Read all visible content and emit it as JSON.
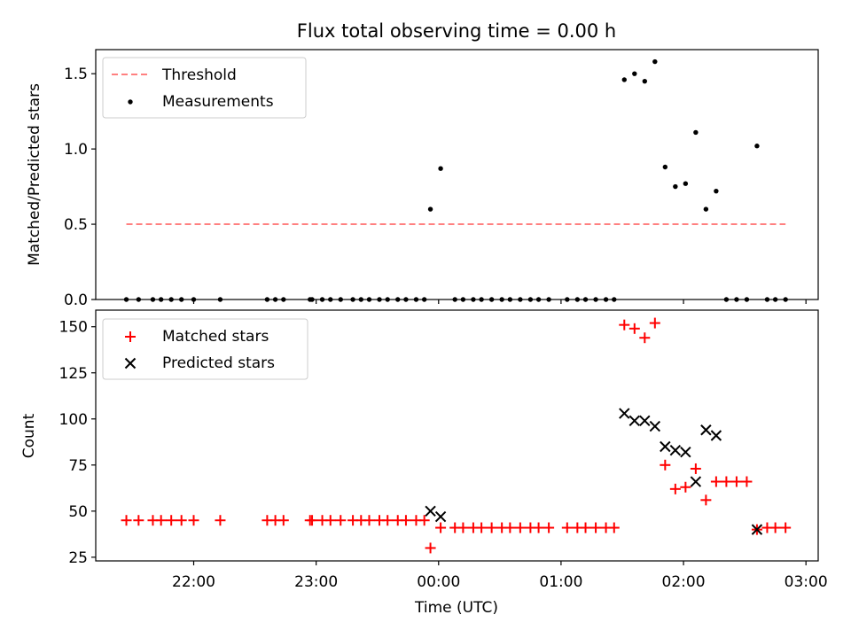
{
  "title": "Flux total observing time = 0.00 h",
  "colors": {
    "threshold": "#ff8080",
    "measure": "#000000",
    "matched": "#ff0000",
    "predicted": "#000000"
  },
  "chart_data": [
    {
      "type": "scatter",
      "title": "Flux total observing time = 0.00 h",
      "ylabel": "Matched/Predicted stars",
      "xlabel": "",
      "xlim": [
        "21:12",
        "03:06"
      ],
      "ylim": [
        0,
        1.66
      ],
      "yticks": [
        0,
        0.5,
        1.0,
        1.5
      ],
      "ytick_labels": [
        "0.0",
        "0.5",
        "1.0",
        "1.5"
      ],
      "legend": {
        "placement": "top-left",
        "entries": [
          "Threshold",
          "Measurements"
        ]
      },
      "threshold": {
        "name": "Threshold",
        "y": 0.5,
        "x_range": [
          "21:27",
          "02:50"
        ]
      },
      "series": [
        {
          "name": "Measurements",
          "points": [
            [
              "21:27",
              0
            ],
            [
              "21:33",
              0
            ],
            [
              "21:40",
              0
            ],
            [
              "21:44",
              0
            ],
            [
              "21:49",
              0
            ],
            [
              "21:54",
              0
            ],
            [
              "22:00",
              0
            ],
            [
              "22:13",
              0
            ],
            [
              "22:36",
              0
            ],
            [
              "22:40",
              0
            ],
            [
              "22:44",
              0
            ],
            [
              "22:57",
              0
            ],
            [
              "22:58",
              0
            ],
            [
              "23:03",
              0
            ],
            [
              "23:07",
              0
            ],
            [
              "23:12",
              0
            ],
            [
              "23:18",
              0
            ],
            [
              "23:22",
              0
            ],
            [
              "23:26",
              0
            ],
            [
              "23:31",
              0
            ],
            [
              "23:35",
              0
            ],
            [
              "23:40",
              0
            ],
            [
              "23:44",
              0
            ],
            [
              "23:49",
              0
            ],
            [
              "23:53",
              0
            ],
            [
              "23:56",
              0.6
            ],
            [
              "00:01",
              0.87
            ],
            [
              "00:08",
              0
            ],
            [
              "00:12",
              0
            ],
            [
              "00:17",
              0
            ],
            [
              "00:21",
              0
            ],
            [
              "00:26",
              0
            ],
            [
              "00:31",
              0
            ],
            [
              "00:35",
              0
            ],
            [
              "00:40",
              0
            ],
            [
              "00:45",
              0
            ],
            [
              "00:49",
              0
            ],
            [
              "00:54",
              0
            ],
            [
              "01:03",
              0
            ],
            [
              "01:08",
              0
            ],
            [
              "01:12",
              0
            ],
            [
              "01:17",
              0
            ],
            [
              "01:22",
              0
            ],
            [
              "01:26",
              0
            ],
            [
              "01:31",
              1.46
            ],
            [
              "01:36",
              1.5
            ],
            [
              "01:41",
              1.45
            ],
            [
              "01:46",
              1.58
            ],
            [
              "01:51",
              0.88
            ],
            [
              "01:56",
              0.75
            ],
            [
              "02:01",
              0.77
            ],
            [
              "02:06",
              1.11
            ],
            [
              "02:11",
              0.6
            ],
            [
              "02:16",
              0.72
            ],
            [
              "02:21",
              0
            ],
            [
              "02:26",
              0
            ],
            [
              "02:31",
              0
            ],
            [
              "02:36",
              1.02
            ],
            [
              "02:41",
              0
            ],
            [
              "02:45",
              0
            ],
            [
              "02:50",
              0
            ]
          ]
        }
      ]
    },
    {
      "type": "scatter",
      "title": "",
      "xlabel": "Time (UTC)",
      "ylabel": "Count",
      "xlim": [
        "21:12",
        "03:06"
      ],
      "ylim": [
        23,
        159
      ],
      "yticks": [
        25,
        50,
        75,
        100,
        125,
        150
      ],
      "xticks": [
        "22:00",
        "23:00",
        "00:00",
        "01:00",
        "02:00",
        "03:00"
      ],
      "legend": {
        "placement": "top-left",
        "entries": [
          "Matched stars",
          "Predicted stars"
        ]
      },
      "series": [
        {
          "name": "Matched stars",
          "marker": "plus",
          "points": [
            [
              "21:27",
              45
            ],
            [
              "21:33",
              45
            ],
            [
              "21:40",
              45
            ],
            [
              "21:44",
              45
            ],
            [
              "21:49",
              45
            ],
            [
              "21:54",
              45
            ],
            [
              "22:00",
              45
            ],
            [
              "22:13",
              45
            ],
            [
              "22:36",
              45
            ],
            [
              "22:40",
              45
            ],
            [
              "22:44",
              45
            ],
            [
              "22:57",
              45
            ],
            [
              "22:58",
              45
            ],
            [
              "23:03",
              45
            ],
            [
              "23:07",
              45
            ],
            [
              "23:12",
              45
            ],
            [
              "23:18",
              45
            ],
            [
              "23:22",
              45
            ],
            [
              "23:26",
              45
            ],
            [
              "23:31",
              45
            ],
            [
              "23:35",
              45
            ],
            [
              "23:40",
              45
            ],
            [
              "23:44",
              45
            ],
            [
              "23:49",
              45
            ],
            [
              "23:53",
              45
            ],
            [
              "23:56",
              30
            ],
            [
              "00:01",
              41
            ],
            [
              "00:08",
              41
            ],
            [
              "00:12",
              41
            ],
            [
              "00:17",
              41
            ],
            [
              "00:21",
              41
            ],
            [
              "00:26",
              41
            ],
            [
              "00:31",
              41
            ],
            [
              "00:35",
              41
            ],
            [
              "00:40",
              41
            ],
            [
              "00:45",
              41
            ],
            [
              "00:49",
              41
            ],
            [
              "00:54",
              41
            ],
            [
              "01:03",
              41
            ],
            [
              "01:08",
              41
            ],
            [
              "01:12",
              41
            ],
            [
              "01:17",
              41
            ],
            [
              "01:22",
              41
            ],
            [
              "01:26",
              41
            ],
            [
              "01:31",
              151
            ],
            [
              "01:36",
              149
            ],
            [
              "01:41",
              144
            ],
            [
              "01:46",
              152
            ],
            [
              "01:51",
              75
            ],
            [
              "01:56",
              62
            ],
            [
              "02:01",
              63
            ],
            [
              "02:06",
              73
            ],
            [
              "02:11",
              56
            ],
            [
              "02:16",
              66
            ],
            [
              "02:21",
              66
            ],
            [
              "02:26",
              66
            ],
            [
              "02:31",
              66
            ],
            [
              "02:36",
              40
            ],
            [
              "02:41",
              41
            ],
            [
              "02:45",
              41
            ],
            [
              "02:50",
              41
            ]
          ]
        },
        {
          "name": "Predicted stars",
          "marker": "x",
          "points": [
            [
              "23:56",
              50
            ],
            [
              "00:01",
              47
            ],
            [
              "01:31",
              103
            ],
            [
              "01:36",
              99
            ],
            [
              "01:41",
              99
            ],
            [
              "01:46",
              96
            ],
            [
              "01:51",
              85
            ],
            [
              "01:56",
              83
            ],
            [
              "02:01",
              82
            ],
            [
              "02:06",
              66
            ],
            [
              "02:11",
              94
            ],
            [
              "02:16",
              91
            ],
            [
              "02:36",
              40
            ]
          ]
        }
      ]
    }
  ]
}
